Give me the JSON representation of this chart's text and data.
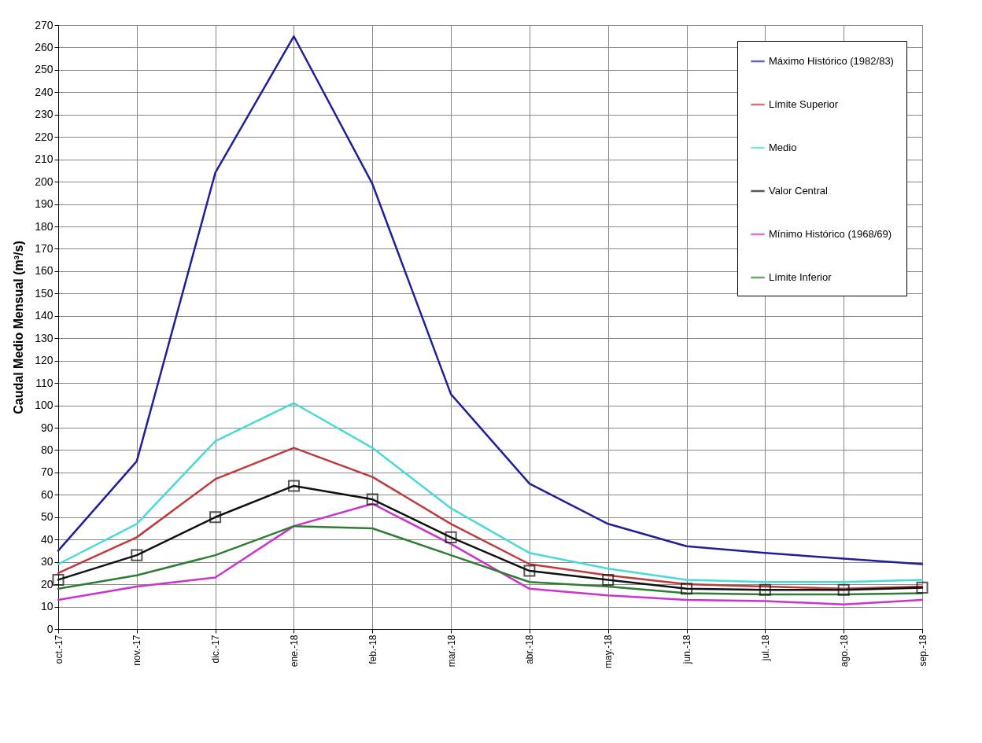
{
  "chart_data": {
    "type": "line",
    "ylabel": "Caudal Medio Mensual (m³/s)",
    "categories": [
      "oct.-17",
      "nov.-17",
      "dic.-17",
      "ene.-18",
      "feb.-18",
      "mar.-18",
      "abr.-18",
      "may.-18",
      "jun.-18",
      "jul.-18",
      "ago.-18",
      "sep.-18"
    ],
    "ylim": [
      0,
      270
    ],
    "yticks": [
      0,
      10,
      20,
      30,
      40,
      50,
      60,
      70,
      80,
      90,
      100,
      110,
      120,
      130,
      140,
      150,
      160,
      170,
      180,
      190,
      200,
      210,
      220,
      230,
      240,
      250,
      260,
      270
    ],
    "grid": true,
    "legend": "top right",
    "marker": "none",
    "line_style": "solid",
    "series": [
      {
        "name": "Máximo Histórico (1982/83)",
        "color": "#1f1f9c",
        "values": [
          35,
          75,
          204,
          265,
          199,
          105,
          65,
          47,
          37,
          34,
          31.5,
          29
        ]
      },
      {
        "name": "Límite Superior",
        "color": "#c0393b",
        "values": [
          25,
          41,
          67,
          81,
          68,
          47,
          29,
          24,
          20,
          19,
          18,
          19
        ]
      },
      {
        "name": "Medio",
        "color": "#4ad9d9",
        "values": [
          29,
          47,
          84,
          101,
          81,
          54,
          34,
          27,
          22,
          21,
          21,
          22
        ]
      },
      {
        "name": "Valor Central",
        "color": "#111111",
        "marker": "square",
        "values": [
          22,
          33,
          50,
          64,
          58,
          41,
          26,
          22,
          18,
          17.5,
          17.5,
          18.5
        ]
      },
      {
        "name": "Mínimo Histórico (1968/69)",
        "color": "#cc33cc",
        "values": [
          13,
          19,
          23,
          46,
          56,
          38,
          18,
          15,
          13,
          12.5,
          11,
          13
        ]
      },
      {
        "name": "Límite Inferior",
        "color": "#2e7d32",
        "values": [
          18,
          24,
          33,
          46,
          45,
          33,
          21,
          19,
          16,
          15.5,
          15.5,
          16
        ]
      }
    ]
  }
}
